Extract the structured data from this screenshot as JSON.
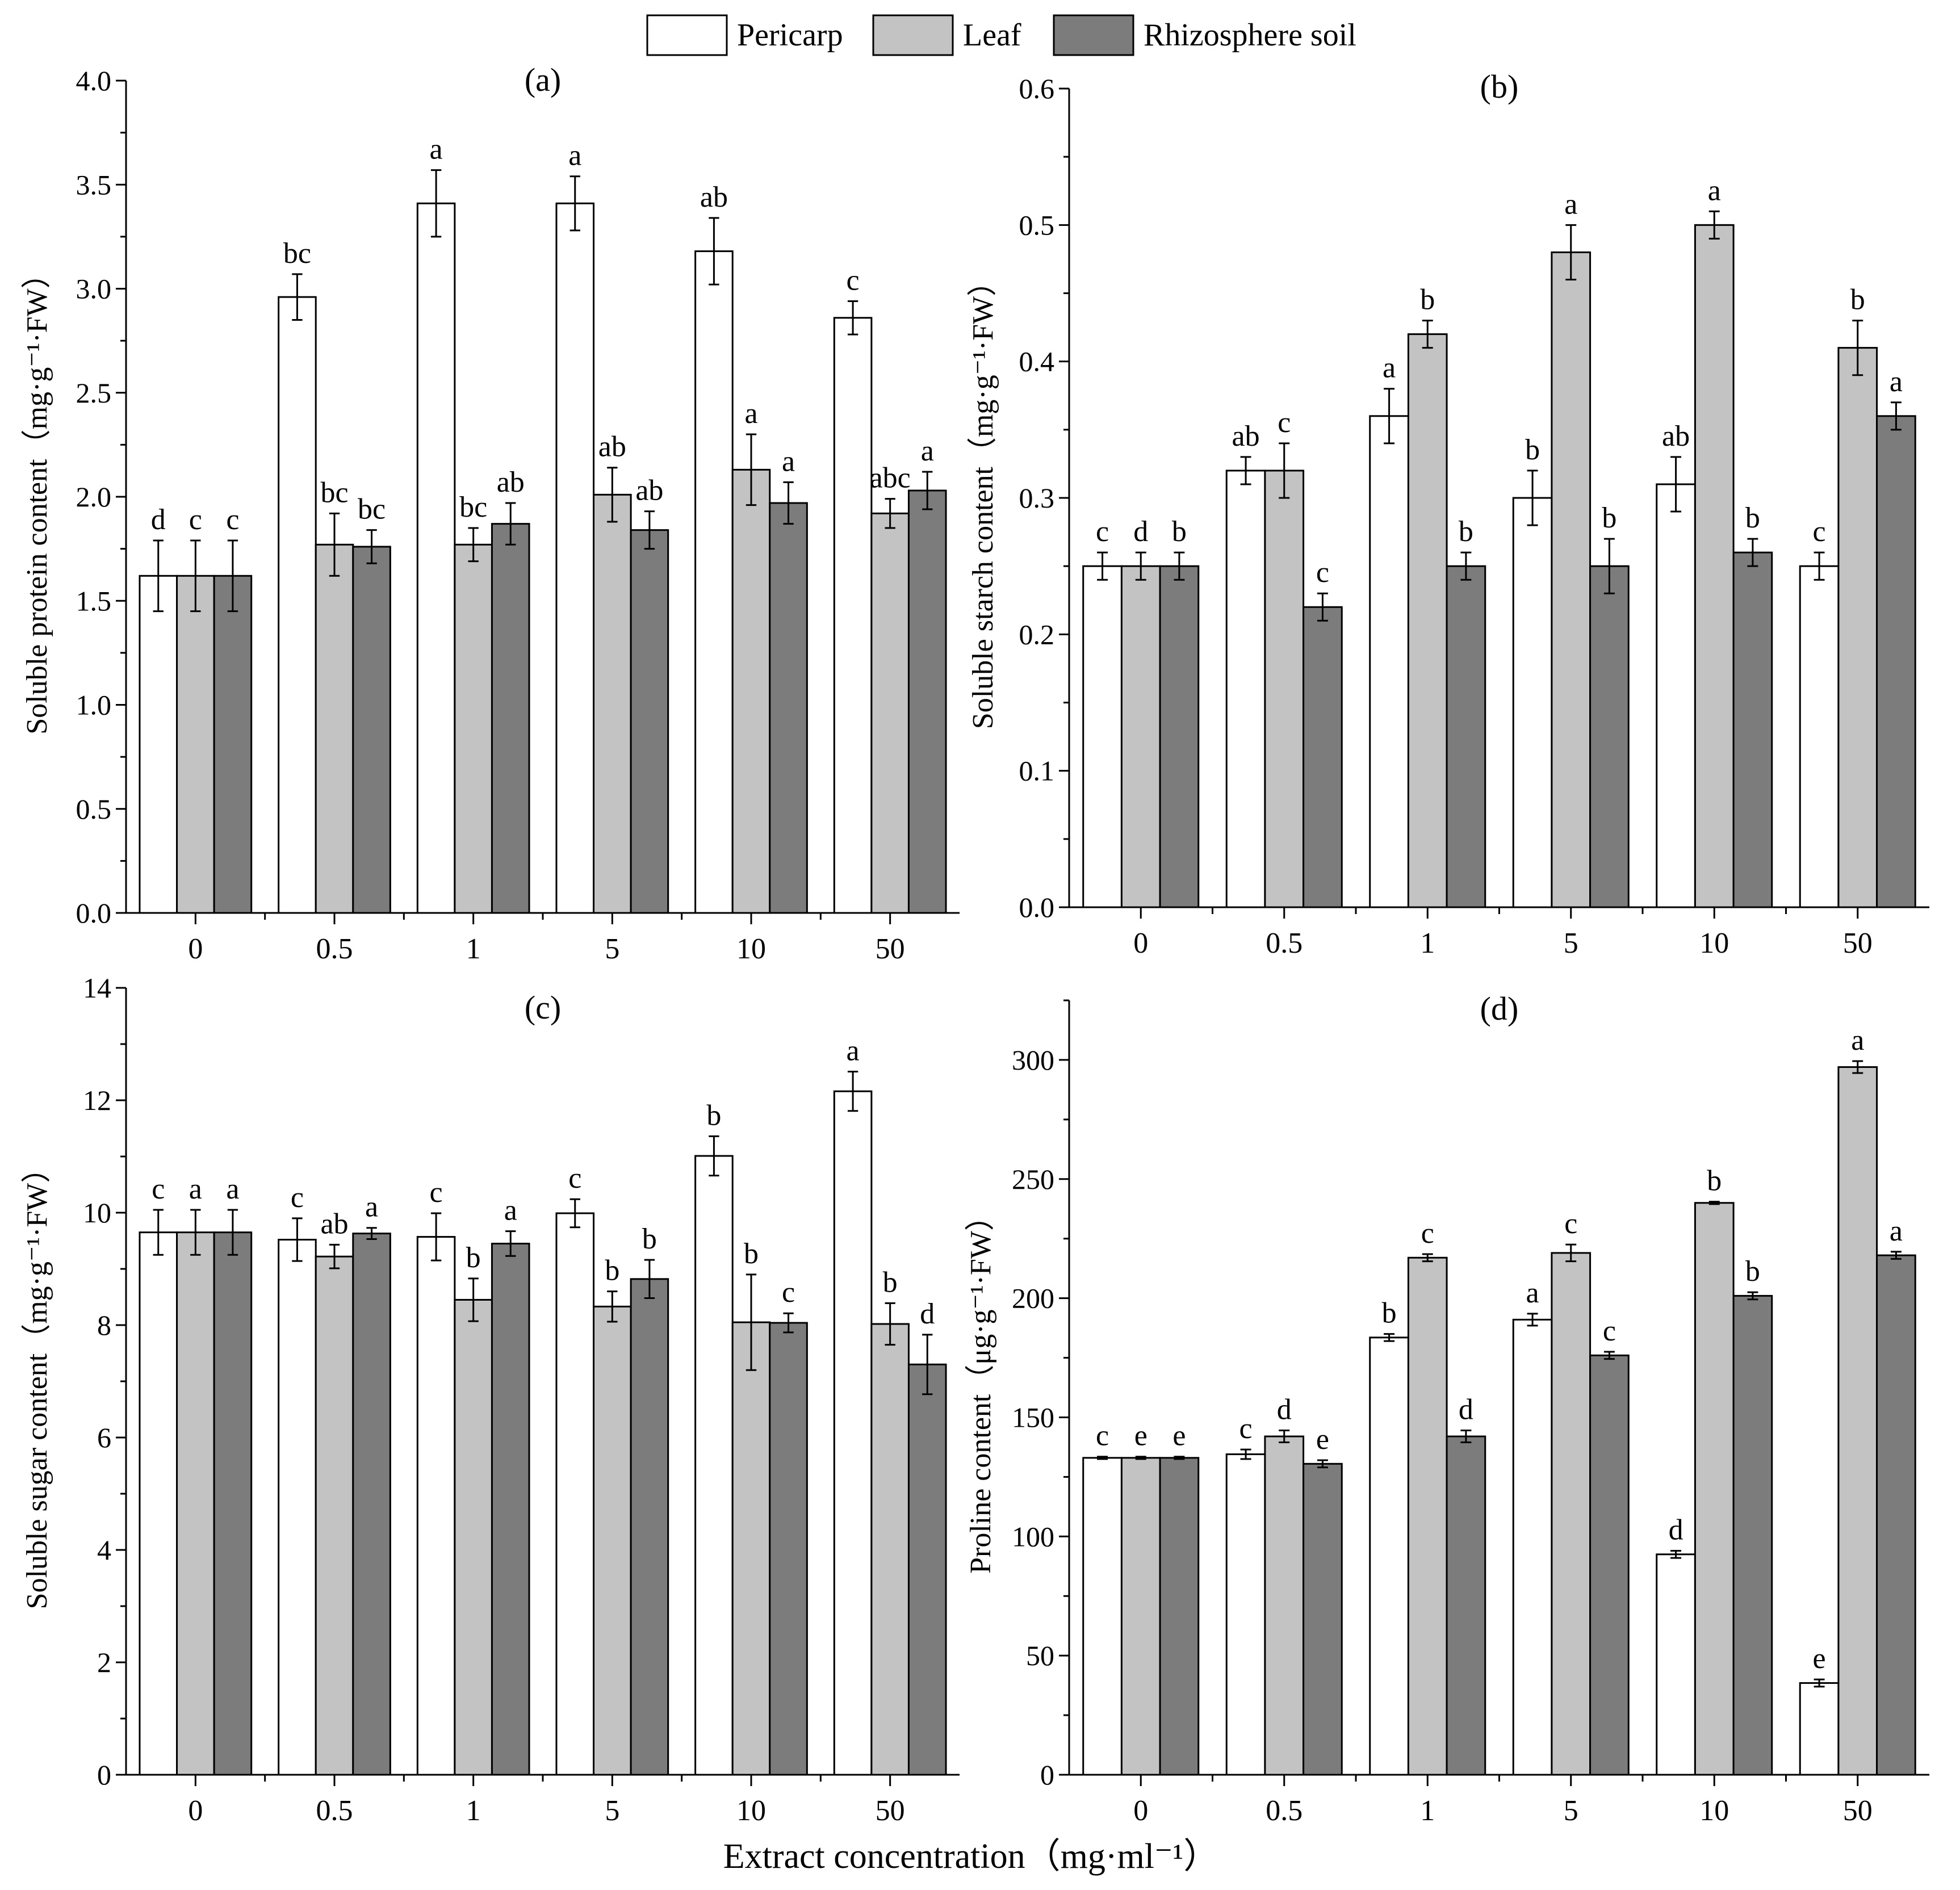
{
  "legend": {
    "items": [
      {
        "label": "Pericarp",
        "color": "#ffffff"
      },
      {
        "label": "Leaf",
        "color": "#c3c3c3"
      },
      {
        "label": "Rhizosphere soil",
        "color": "#7c7c7c"
      }
    ]
  },
  "x_axis_label": "Extract concentration（mg·ml⁻¹）",
  "chart_data": [
    {
      "id": "a",
      "type": "bar",
      "title": "(a)",
      "ylabel": "Soluble protein content（mg·g⁻¹·FW）",
      "categories": [
        "0",
        "0.5",
        "1",
        "5",
        "10",
        "50"
      ],
      "ylim": [
        0,
        4.0
      ],
      "yticks": [
        0.0,
        0.5,
        1.0,
        1.5,
        2.0,
        2.5,
        3.0,
        3.5,
        4.0
      ],
      "tick_decimals": 1,
      "series": [
        {
          "name": "Pericarp",
          "values": [
            1.62,
            2.96,
            3.41,
            3.41,
            3.18,
            2.86
          ],
          "errors": [
            0.17,
            0.11,
            0.16,
            0.13,
            0.16,
            0.08
          ],
          "letters": [
            "d",
            "bc",
            "a",
            "a",
            "ab",
            "c"
          ]
        },
        {
          "name": "Leaf",
          "values": [
            1.62,
            1.77,
            1.77,
            2.01,
            2.13,
            1.92
          ],
          "errors": [
            0.17,
            0.15,
            0.08,
            0.13,
            0.17,
            0.07
          ],
          "letters": [
            "c",
            "bc",
            "bc",
            "ab",
            "a",
            "abc"
          ]
        },
        {
          "name": "Rhizosphere soil",
          "values": [
            1.62,
            1.76,
            1.87,
            1.84,
            1.97,
            2.03
          ],
          "errors": [
            0.17,
            0.08,
            0.1,
            0.09,
            0.1,
            0.09
          ],
          "letters": [
            "c",
            "bc",
            "ab",
            "ab",
            "a",
            "a"
          ]
        }
      ]
    },
    {
      "id": "b",
      "type": "bar",
      "title": "(b)",
      "ylabel": "Soluble starch content（mg·g⁻¹·FW）",
      "categories": [
        "0",
        "0.5",
        "1",
        "5",
        "10",
        "50"
      ],
      "ylim": [
        0,
        0.6
      ],
      "yticks": [
        0.0,
        0.1,
        0.2,
        0.3,
        0.4,
        0.5,
        0.6
      ],
      "tick_decimals": 1,
      "series": [
        {
          "name": "Pericarp",
          "values": [
            0.25,
            0.32,
            0.36,
            0.3,
            0.31,
            0.25
          ],
          "errors": [
            0.01,
            0.01,
            0.02,
            0.02,
            0.02,
            0.01
          ],
          "letters": [
            "c",
            "ab",
            "a",
            "b",
            "ab",
            "c"
          ]
        },
        {
          "name": "Leaf",
          "values": [
            0.25,
            0.32,
            0.42,
            0.48,
            0.5,
            0.41
          ],
          "errors": [
            0.01,
            0.02,
            0.01,
            0.02,
            0.01,
            0.02
          ],
          "letters": [
            "d",
            "c",
            "b",
            "a",
            "a",
            "b"
          ]
        },
        {
          "name": "Rhizosphere soil",
          "values": [
            0.25,
            0.22,
            0.25,
            0.25,
            0.26,
            0.36
          ],
          "errors": [
            0.01,
            0.01,
            0.01,
            0.02,
            0.01,
            0.01
          ],
          "letters": [
            "b",
            "c",
            "b",
            "b",
            "b",
            "a"
          ]
        }
      ]
    },
    {
      "id": "c",
      "type": "bar",
      "title": "(c)",
      "ylabel": "Soluble sugar content（mg·g⁻¹·FW）",
      "categories": [
        "0",
        "0.5",
        "1",
        "5",
        "10",
        "50"
      ],
      "ylim": [
        0,
        14
      ],
      "yticks": [
        0,
        2,
        4,
        6,
        8,
        10,
        12,
        14
      ],
      "tick_decimals": 0,
      "series": [
        {
          "name": "Pericarp",
          "values": [
            9.65,
            9.52,
            9.57,
            9.99,
            11.01,
            12.16
          ],
          "errors": [
            0.4,
            0.38,
            0.42,
            0.25,
            0.35,
            0.35
          ],
          "letters": [
            "c",
            "c",
            "c",
            "c",
            "b",
            "a"
          ]
        },
        {
          "name": "Leaf",
          "values": [
            9.65,
            9.22,
            8.45,
            8.33,
            8.05,
            8.02
          ],
          "errors": [
            0.4,
            0.21,
            0.38,
            0.27,
            0.85,
            0.37
          ],
          "letters": [
            "a",
            "ab",
            "b",
            "b",
            "b",
            "b"
          ]
        },
        {
          "name": "Rhizosphere soil",
          "values": [
            9.65,
            9.63,
            9.45,
            8.82,
            8.04,
            7.3
          ],
          "errors": [
            0.4,
            0.1,
            0.22,
            0.34,
            0.17,
            0.53
          ],
          "letters": [
            "a",
            "a",
            "a",
            "b",
            "c",
            "d"
          ]
        }
      ]
    },
    {
      "id": "d",
      "type": "bar",
      "title": "(d)",
      "ylabel": "Proline content（μg·g⁻¹·FW）",
      "categories": [
        "0",
        "0.5",
        "1",
        "5",
        "10",
        "50"
      ],
      "ylim": [
        0,
        325
      ],
      "yticks": [
        0,
        50,
        100,
        150,
        200,
        250,
        300
      ],
      "tick_decimals": 0,
      "series": [
        {
          "name": "Pericarp",
          "values": [
            133,
            134.5,
            183.5,
            191,
            92.5,
            38.5
          ],
          "errors": [
            0.5,
            2,
            1.5,
            2.5,
            1.5,
            1.5
          ],
          "letters": [
            "c",
            "c",
            "b",
            "a",
            "d",
            "e"
          ]
        },
        {
          "name": "Leaf",
          "values": [
            133,
            142,
            217,
            219,
            240,
            297
          ],
          "errors": [
            0.5,
            2.5,
            1.5,
            3.5,
            0.5,
            2.5
          ],
          "letters": [
            "e",
            "d",
            "c",
            "c",
            "b",
            "a"
          ]
        },
        {
          "name": "Rhizosphere soil",
          "values": [
            133,
            130.5,
            142,
            176,
            201,
            218
          ],
          "errors": [
            0.5,
            1.5,
            2.5,
            1.5,
            1.5,
            1.5
          ],
          "letters": [
            "e",
            "e",
            "d",
            "c",
            "b",
            "a"
          ]
        }
      ]
    }
  ]
}
